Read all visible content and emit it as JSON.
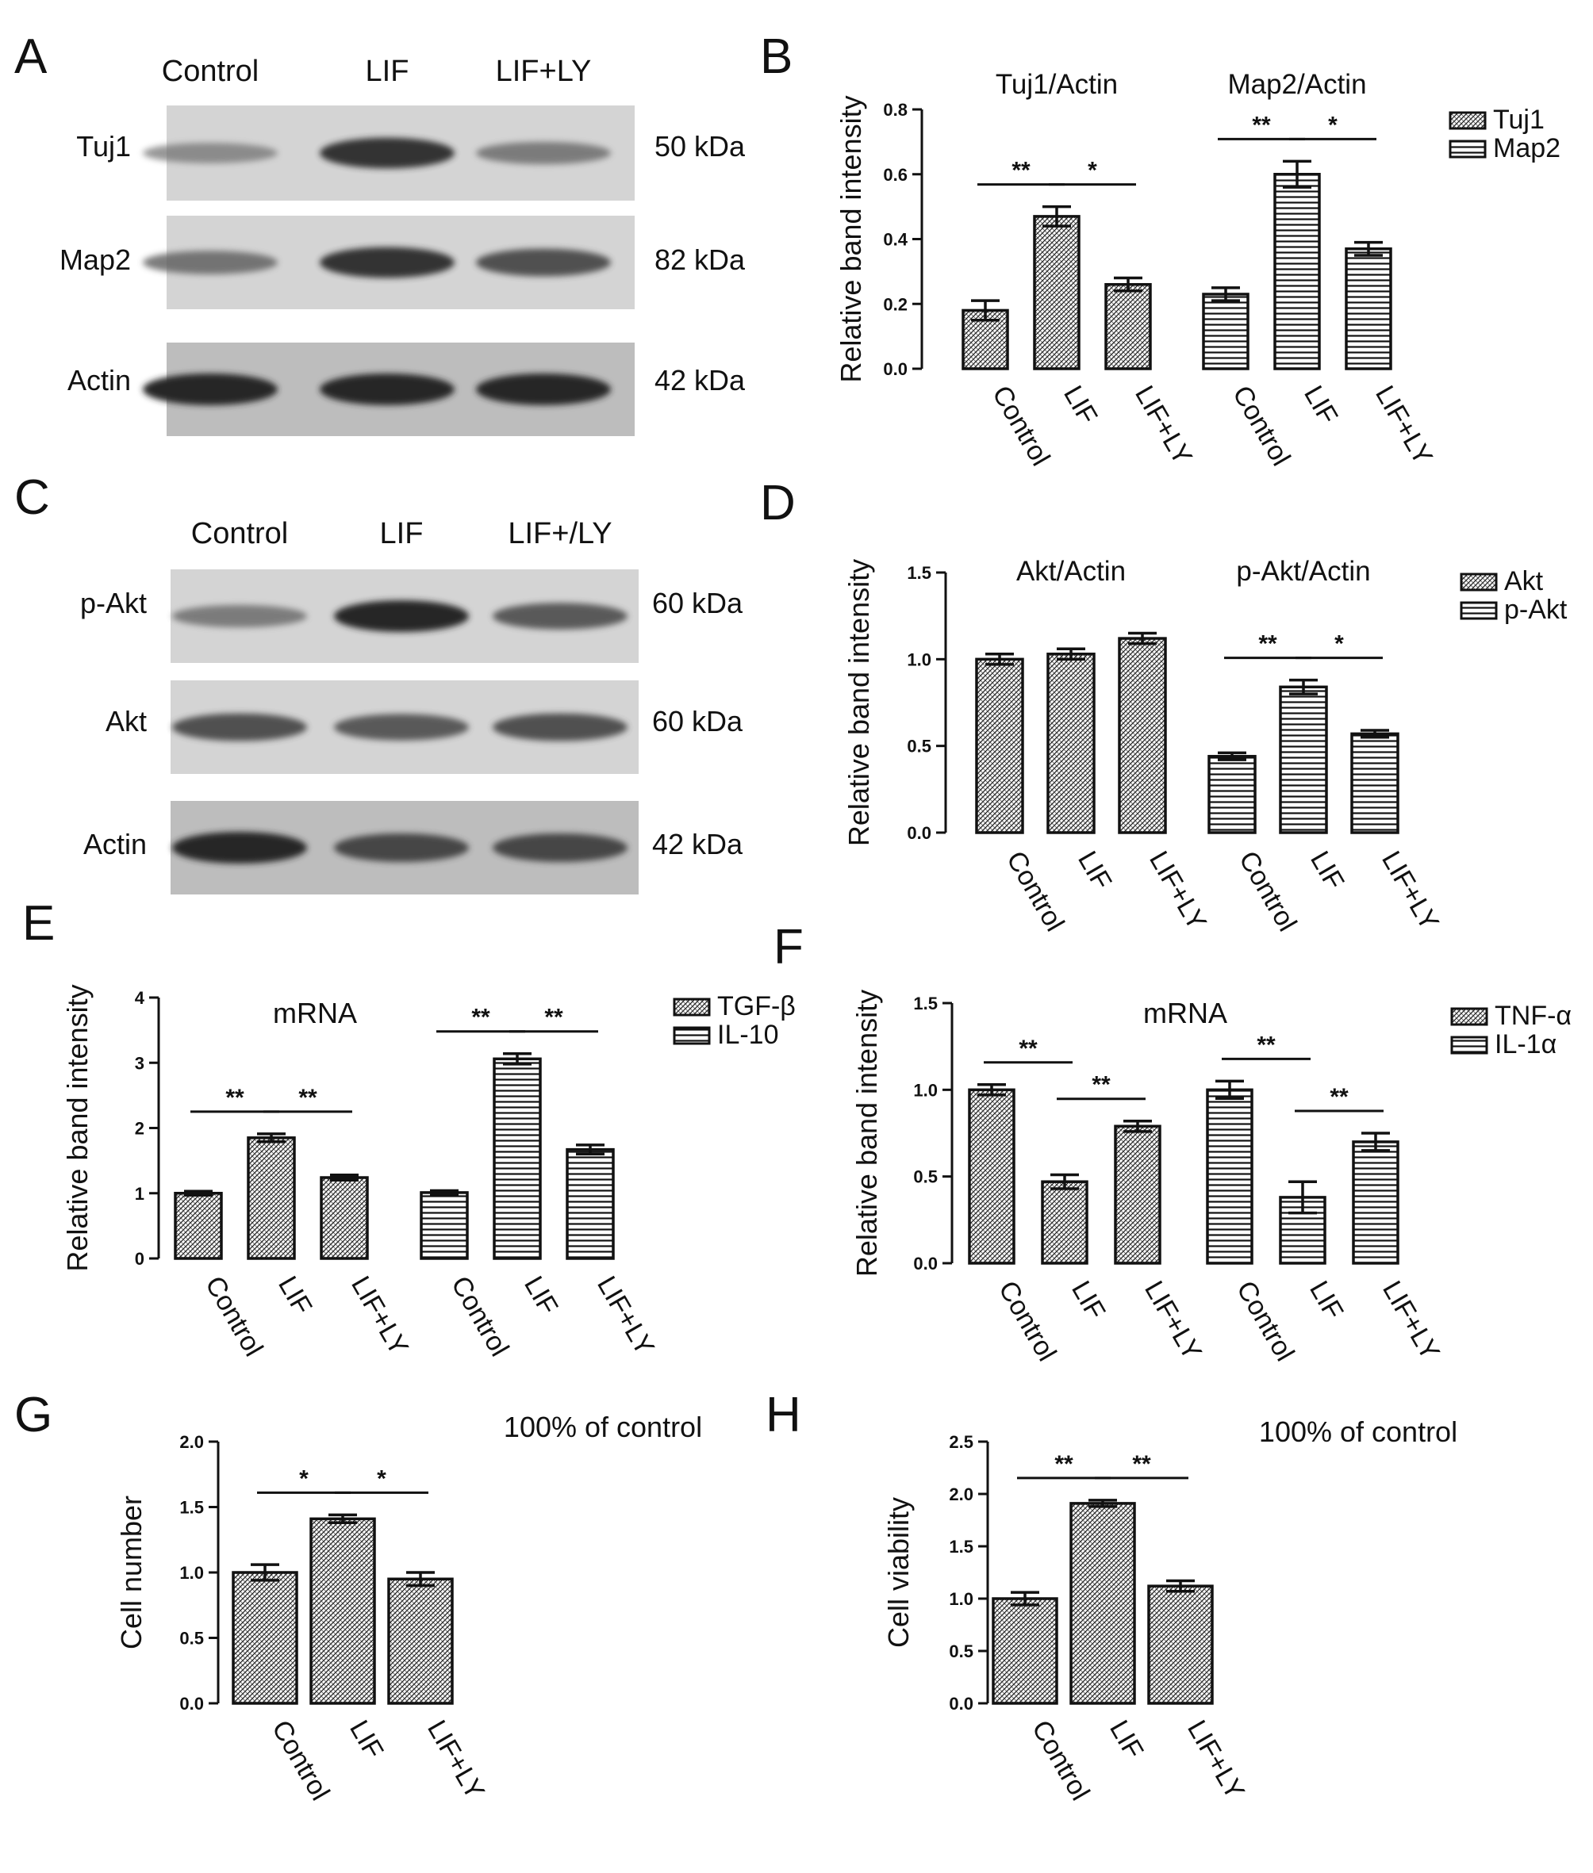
{
  "panel_letters": [
    "A",
    "B",
    "C",
    "D",
    "E",
    "F",
    "G",
    "H"
  ],
  "blots": [
    {
      "letter": "A",
      "lanes": [
        "Control",
        "LIF",
        "LIF+LY"
      ],
      "rows": [
        {
          "label": "Tuj1",
          "kda": "50 kDa",
          "intensity": [
            0.45,
            0.95,
            0.55
          ]
        },
        {
          "label": "Map2",
          "kda": "82 kDa",
          "intensity": [
            0.6,
            0.95,
            0.8
          ]
        },
        {
          "label": "Actin",
          "kda": "42 kDa",
          "intensity": [
            1.0,
            1.0,
            1.0
          ]
        }
      ]
    },
    {
      "letter": "C",
      "lanes": [
        "Control",
        "LIF",
        "LIF+/LY"
      ],
      "rows": [
        {
          "label": "p-Akt",
          "kda": "60 kDa",
          "intensity": [
            0.55,
            1.0,
            0.75
          ]
        },
        {
          "label": "Akt",
          "kda": "60 kDa",
          "intensity": [
            0.8,
            0.75,
            0.8
          ]
        },
        {
          "label": "Actin",
          "kda": "42 kDa",
          "intensity": [
            1.0,
            0.85,
            0.85
          ]
        }
      ]
    }
  ],
  "chart_data": [
    {
      "letter": "B",
      "type": "bar",
      "title": "",
      "ylabel": "Relative band intensity",
      "ylim": [
        0,
        0.8
      ],
      "yticks": [
        "0.0",
        "0.2",
        "0.4",
        "0.6",
        "0.8"
      ],
      "groups": [
        {
          "name": "Tuj1",
          "subtitle": "Tuj1/Actin",
          "pattern": "hatch",
          "categories": [
            "Control",
            "LIF",
            "LIF+LY"
          ],
          "values": [
            0.18,
            0.47,
            0.26
          ],
          "errors": [
            0.03,
            0.03,
            0.02
          ]
        },
        {
          "name": "Map2",
          "subtitle": "Map2/Actin",
          "pattern": "hlines",
          "categories": [
            "Control",
            "LIF",
            "LIF+LY"
          ],
          "values": [
            0.23,
            0.6,
            0.37
          ],
          "errors": [
            0.02,
            0.04,
            0.02
          ]
        }
      ],
      "significance": [
        {
          "group": 0,
          "from": 0,
          "to": 1,
          "label": "**"
        },
        {
          "group": 0,
          "from": 1,
          "to": 2,
          "label": "*"
        },
        {
          "group": 1,
          "from": 0,
          "to": 1,
          "label": "**"
        },
        {
          "group": 1,
          "from": 1,
          "to": 2,
          "label": "*"
        }
      ],
      "legend": {
        "placement": "right",
        "entries": [
          "Tuj1",
          "Map2"
        ]
      }
    },
    {
      "letter": "D",
      "type": "bar",
      "title": "",
      "ylabel": "Relative band intensity",
      "ylim": [
        0,
        1.5
      ],
      "yticks": [
        "0.0",
        "0.5",
        "1.0",
        "1.5"
      ],
      "groups": [
        {
          "name": "Akt",
          "subtitle": "Akt/Actin",
          "pattern": "hatch",
          "categories": [
            "Control",
            "LIF",
            "LIF+LY"
          ],
          "values": [
            1.0,
            1.03,
            1.12
          ],
          "errors": [
            0.03,
            0.03,
            0.03
          ]
        },
        {
          "name": "p-Akt",
          "subtitle": "p-Akt/Actin",
          "pattern": "hlines",
          "categories": [
            "Control",
            "LIF",
            "LIF+LY"
          ],
          "values": [
            0.44,
            0.84,
            0.57
          ],
          "errors": [
            0.02,
            0.04,
            0.02
          ]
        }
      ],
      "significance": [
        {
          "group": 1,
          "from": 0,
          "to": 1,
          "label": "**"
        },
        {
          "group": 1,
          "from": 1,
          "to": 2,
          "label": "*"
        }
      ],
      "legend": {
        "placement": "right",
        "entries": [
          "Akt",
          "p-Akt"
        ]
      }
    },
    {
      "letter": "E",
      "type": "bar",
      "title": "mRNA",
      "ylabel": "Relative band intensity",
      "ylim": [
        0,
        4
      ],
      "yticks": [
        "0",
        "1",
        "2",
        "3",
        "4"
      ],
      "groups": [
        {
          "name": "TGF-β",
          "subtitle": "",
          "pattern": "hatch",
          "categories": [
            "Control",
            "LIF",
            "LIF+LY"
          ],
          "values": [
            1.0,
            1.85,
            1.24
          ],
          "errors": [
            0.03,
            0.06,
            0.04
          ]
        },
        {
          "name": "IL-10",
          "subtitle": "",
          "pattern": "hlines",
          "categories": [
            "Control",
            "LIF",
            "LIF+LY"
          ],
          "values": [
            1.01,
            3.06,
            1.67
          ],
          "errors": [
            0.03,
            0.08,
            0.07
          ]
        }
      ],
      "significance": [
        {
          "group": 0,
          "from": 0,
          "to": 1,
          "label": "**"
        },
        {
          "group": 0,
          "from": 1,
          "to": 2,
          "label": "**"
        },
        {
          "group": 1,
          "from": 0,
          "to": 1,
          "label": "**"
        },
        {
          "group": 1,
          "from": 1,
          "to": 2,
          "label": "**"
        }
      ],
      "legend": {
        "placement": "right",
        "entries": [
          "TGF-β",
          "IL-10"
        ]
      }
    },
    {
      "letter": "F",
      "type": "bar",
      "title": "mRNA",
      "ylabel": "Relative band intensity",
      "ylim": [
        0,
        1.5
      ],
      "yticks": [
        "0.0",
        "0.5",
        "1.0",
        "1.5"
      ],
      "groups": [
        {
          "name": "TNF-α",
          "subtitle": "",
          "pattern": "hatch",
          "categories": [
            "Control",
            "LIF",
            "LIF+LY"
          ],
          "values": [
            1.0,
            0.47,
            0.79
          ],
          "errors": [
            0.03,
            0.04,
            0.03
          ]
        },
        {
          "name": "IL-1α",
          "subtitle": "",
          "pattern": "hlines",
          "categories": [
            "Control",
            "LIF",
            "LIF+LY"
          ],
          "values": [
            1.0,
            0.38,
            0.7
          ],
          "errors": [
            0.05,
            0.09,
            0.05
          ]
        }
      ],
      "significance": [
        {
          "group": 0,
          "from": 0,
          "to": 1,
          "label": "**"
        },
        {
          "group": 0,
          "from": 1,
          "to": 2,
          "label": "**"
        },
        {
          "group": 1,
          "from": 0,
          "to": 1,
          "label": "**"
        },
        {
          "group": 1,
          "from": 1,
          "to": 2,
          "label": "**"
        }
      ],
      "legend": {
        "placement": "right",
        "entries": [
          "TNF-α",
          "IL-1α"
        ]
      }
    },
    {
      "letter": "G",
      "type": "bar",
      "title": "100% of control",
      "ylabel": "Cell number",
      "ylim": [
        0,
        2.0
      ],
      "yticks": [
        "0.0",
        "0.5",
        "1.0",
        "1.5",
        "2.0"
      ],
      "groups": [
        {
          "name": "",
          "subtitle": "",
          "pattern": "hatch",
          "categories": [
            "Control",
            "LIF",
            "LIF+LY"
          ],
          "values": [
            1.0,
            1.41,
            0.95
          ],
          "errors": [
            0.06,
            0.03,
            0.05
          ]
        }
      ],
      "significance": [
        {
          "group": 0,
          "from": 0,
          "to": 1,
          "label": "*"
        },
        {
          "group": 0,
          "from": 1,
          "to": 2,
          "label": "*"
        }
      ],
      "legend": {
        "placement": "none",
        "entries": []
      }
    },
    {
      "letter": "H",
      "type": "bar",
      "title": "100% of control",
      "ylabel": "Cell viability",
      "ylim": [
        0,
        2.5
      ],
      "yticks": [
        "0.0",
        "0.5",
        "1.0",
        "1.5",
        "2.0",
        "2.5"
      ],
      "groups": [
        {
          "name": "",
          "subtitle": "",
          "pattern": "hatch",
          "categories": [
            "Control",
            "LIF",
            "LIF+LY"
          ],
          "values": [
            1.0,
            1.91,
            1.12
          ],
          "errors": [
            0.06,
            0.03,
            0.05
          ]
        }
      ],
      "significance": [
        {
          "group": 0,
          "from": 0,
          "to": 1,
          "label": "**"
        },
        {
          "group": 0,
          "from": 1,
          "to": 2,
          "label": "**"
        }
      ],
      "legend": {
        "placement": "none",
        "entries": []
      }
    }
  ]
}
